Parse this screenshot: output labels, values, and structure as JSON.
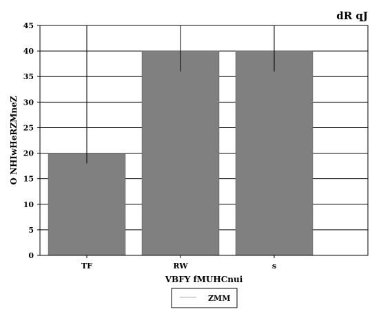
{
  "chart_data": {
    "type": "bar",
    "title": "dR qJ",
    "xlabel": "VBFY fMUHCnui",
    "ylabel": "O NHIwHeRZMneZ",
    "categories": [
      "TF",
      "RW",
      "s"
    ],
    "series": [
      {
        "name": "ZMM",
        "values": [
          20,
          40,
          40
        ],
        "error_low": [
          18,
          36,
          36
        ],
        "error_high": [
          45,
          45,
          45
        ]
      }
    ],
    "ylim": [
      0,
      45
    ],
    "yticks": [
      0,
      5,
      10,
      15,
      20,
      25,
      30,
      35,
      40,
      45
    ],
    "grid": true,
    "legend_position": "bottom-center",
    "colors": {
      "bar": "#808080",
      "bar_edge": "#6e6e6e",
      "axis": "#000000",
      "grid": "#000000",
      "error": "#000000",
      "legend_line": "#c8c8c8"
    }
  }
}
